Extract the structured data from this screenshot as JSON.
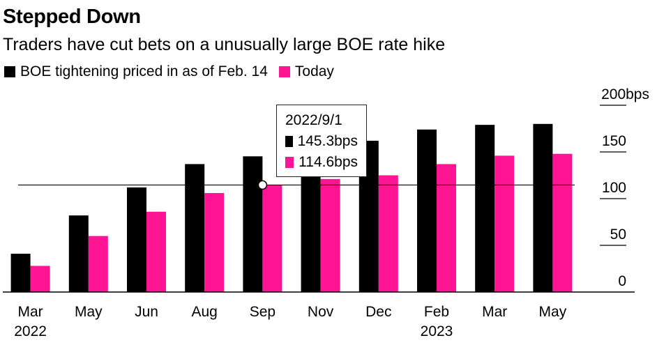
{
  "title": "Stepped Down",
  "subtitle": "Traders have cut bets on a unusually large BOE rate hike",
  "legend": [
    {
      "label": "BOE tightening priced in as of Feb. 14",
      "color": "#000000"
    },
    {
      "label": "Today",
      "color": "#ff1493"
    }
  ],
  "tooltip": {
    "date": "2022/9/1",
    "values": [
      "145.3bps",
      "114.6bps"
    ]
  },
  "chart_data": {
    "type": "bar",
    "title": "Stepped Down",
    "subtitle": "Traders have cut bets on a unusually large BOE rate hike",
    "categories": [
      "Mar",
      "May",
      "Jun",
      "Aug",
      "Sep",
      "Nov",
      "Dec",
      "Feb",
      "Mar",
      "May"
    ],
    "year_labels": [
      "2022",
      "",
      "",
      "",
      "",
      "",
      "",
      "2023",
      "",
      ""
    ],
    "series": [
      {
        "name": "BOE tightening priced in as of Feb. 14",
        "color": "#000000",
        "values": [
          41,
          82,
          112,
          137,
          145.3,
          154,
          162,
          174,
          179,
          180
        ]
      },
      {
        "name": "Today",
        "color": "#ff1493",
        "values": [
          28,
          60,
          86,
          106,
          114.6,
          121,
          125,
          137,
          146,
          148
        ]
      }
    ],
    "ylim": [
      0,
      200
    ],
    "yticks": [
      0,
      50,
      100,
      150,
      200
    ],
    "ytick_labels": [
      "0",
      "50",
      "100",
      "150",
      "200bps"
    ],
    "reference_line": 114.6,
    "axis_position": "right",
    "grid": false
  }
}
